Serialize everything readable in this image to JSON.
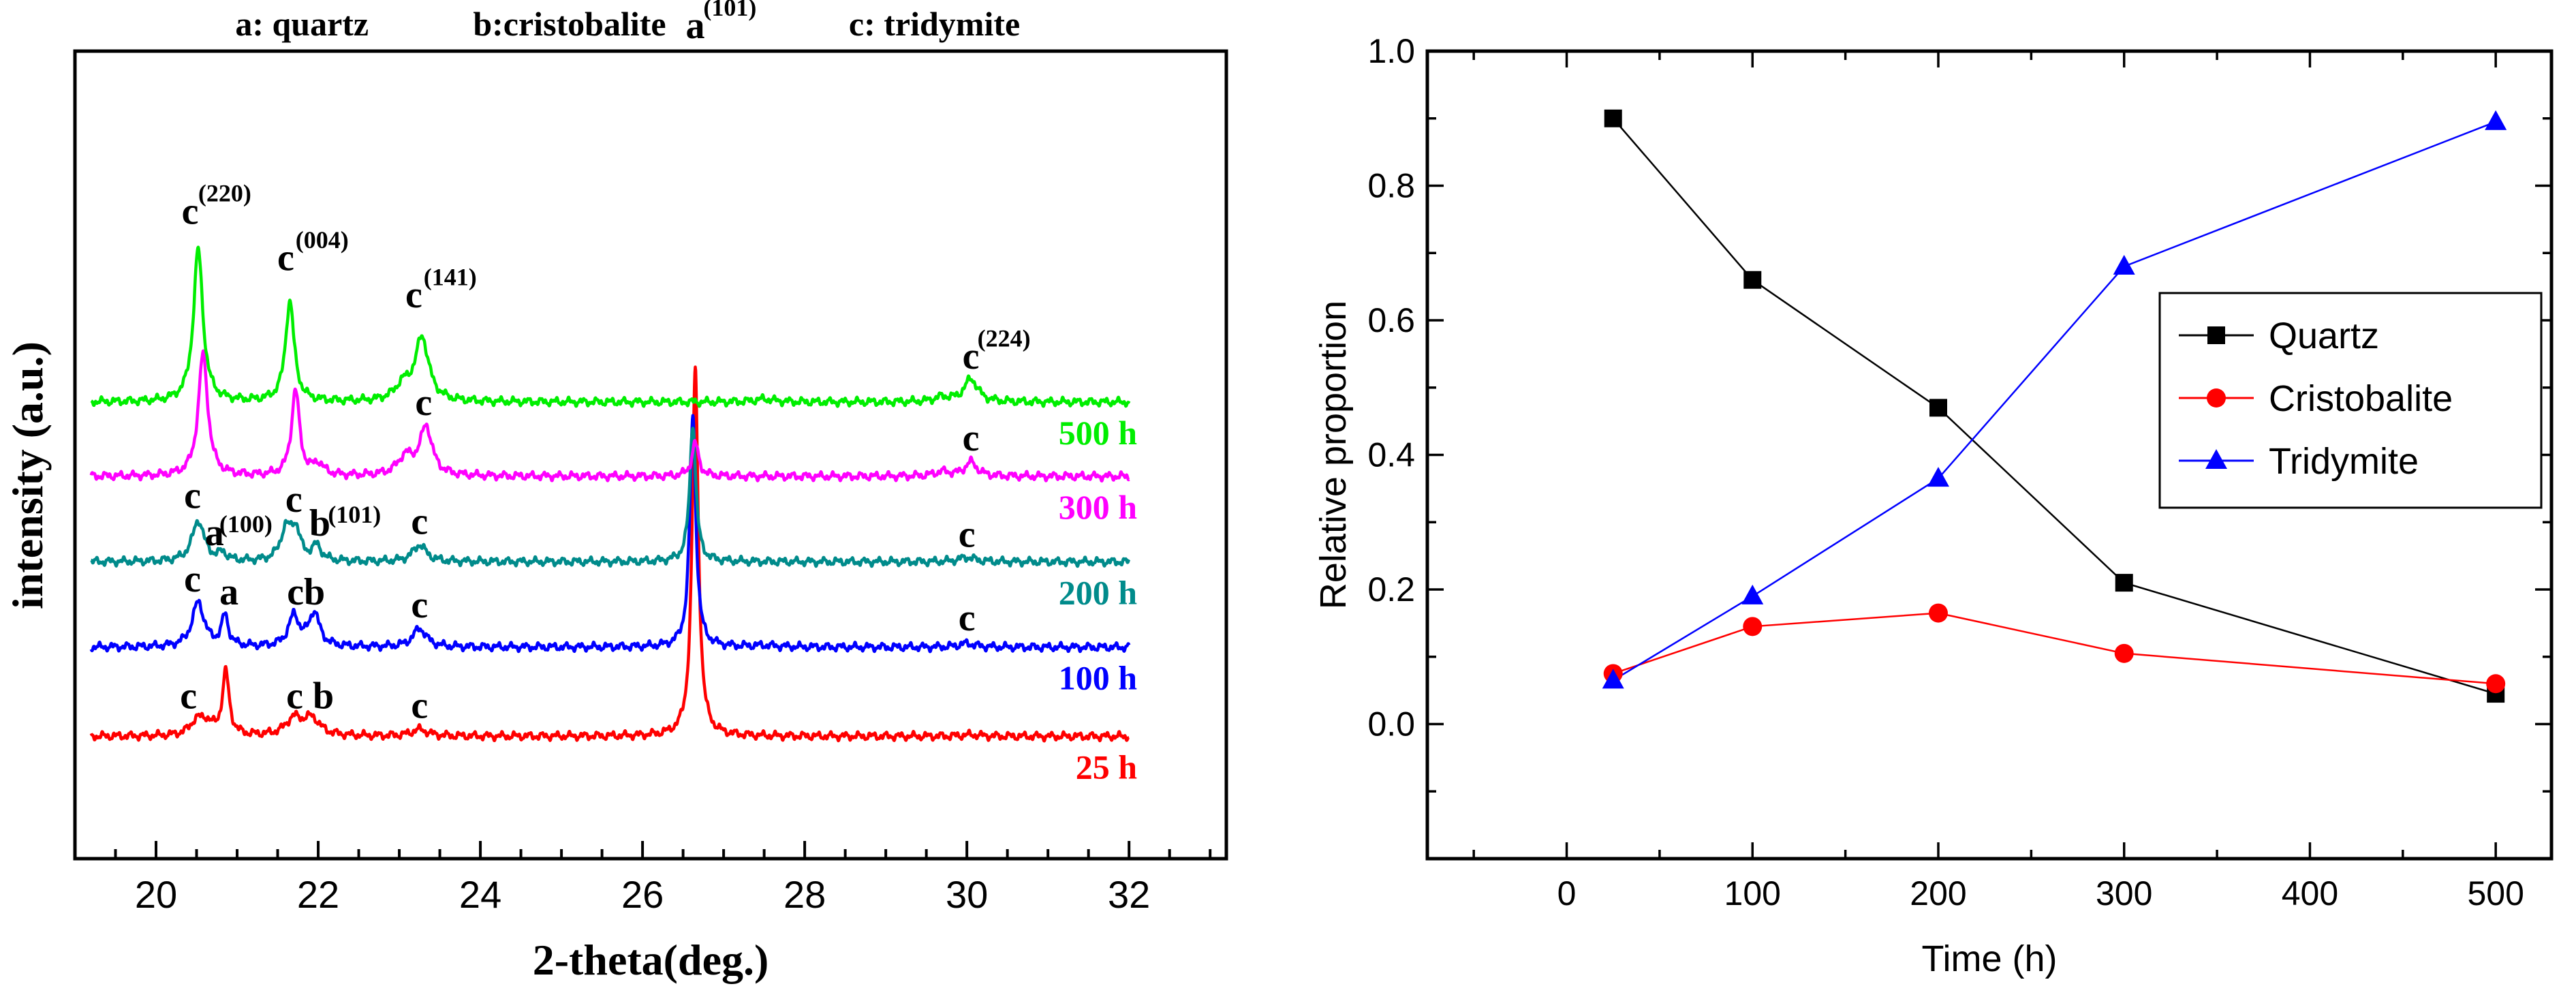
{
  "chart_data": [
    {
      "type": "line",
      "title": "",
      "xlabel": "2-theta(deg.)",
      "ylabel": "intensity (a.u.)",
      "xlim": [
        19,
        33.2
      ],
      "xticks": [
        20,
        22,
        24,
        26,
        28,
        30,
        32
      ],
      "grid": false,
      "phase_legend": [
        "a: quartz",
        "b:cristobalite",
        "c: tridymite"
      ],
      "series": [
        {
          "name": "25 h",
          "color": "#ff0000",
          "baseline": 0.1,
          "peaks": [
            {
              "x": 20.5,
              "h": 0.035,
              "w": 0.1
            },
            {
              "x": 20.62,
              "h": 0.03,
              "w": 0.1
            },
            {
              "x": 20.86,
              "h": 0.17,
              "w": 0.05
            },
            {
              "x": 21.7,
              "h": 0.045,
              "w": 0.12
            },
            {
              "x": 21.92,
              "h": 0.045,
              "w": 0.12
            },
            {
              "x": 23.25,
              "h": 0.018,
              "w": 0.12
            },
            {
              "x": 26.65,
              "h": 0.99,
              "w": 0.045
            },
            {
              "x": 30.05,
              "h": 0.004,
              "w": 0.15
            }
          ],
          "labels": [
            {
              "text": "c",
              "x": 20.4,
              "y": 0.175
            },
            {
              "text": "c b",
              "x": 21.9,
              "y": 0.175
            },
            {
              "text": "c",
              "x": 23.25,
              "y": 0.15
            }
          ]
        },
        {
          "name": "100 h",
          "color": "#0000ff",
          "baseline": 0.34,
          "peaks": [
            {
              "x": 20.52,
              "h": 0.12,
              "w": 0.09
            },
            {
              "x": 20.85,
              "h": 0.082,
              "w": 0.05
            },
            {
              "x": 21.7,
              "h": 0.082,
              "w": 0.08
            },
            {
              "x": 21.95,
              "h": 0.09,
              "w": 0.08
            },
            {
              "x": 23.25,
              "h": 0.05,
              "w": 0.1
            },
            {
              "x": 26.62,
              "h": 0.62,
              "w": 0.045
            },
            {
              "x": 27.5,
              "h": 0.004,
              "w": 0.2
            },
            {
              "x": 30.0,
              "h": 0.01,
              "w": 0.12
            }
          ],
          "labels": [
            {
              "text": "c",
              "x": 20.45,
              "y": 0.49
            },
            {
              "text": "a",
              "x": 20.9,
              "y": 0.455
            },
            {
              "text": "cb",
              "x": 21.85,
              "y": 0.455
            },
            {
              "text": "c",
              "x": 23.25,
              "y": 0.42
            },
            {
              "text": "c",
              "x": 30.0,
              "y": 0.385
            }
          ]
        },
        {
          "name": "200 h",
          "color": "#008b8b",
          "baseline": 0.57,
          "peaks": [
            {
              "x": 20.52,
              "h": 0.11,
              "w": 0.09
            },
            {
              "x": 20.82,
              "h": 0.02,
              "w": 0.06
            },
            {
              "x": 21.6,
              "h": 0.08,
              "w": 0.08
            },
            {
              "x": 21.72,
              "h": 0.08,
              "w": 0.07
            },
            {
              "x": 21.98,
              "h": 0.04,
              "w": 0.07
            },
            {
              "x": 23.25,
              "h": 0.045,
              "w": 0.1
            },
            {
              "x": 26.62,
              "h": 0.37,
              "w": 0.045
            },
            {
              "x": 30.0,
              "h": 0.012,
              "w": 0.12
            }
          ],
          "labels": [
            {
              "text": "c",
              "x": 20.45,
              "y": 0.715
            },
            {
              "text": "a",
              "x": 20.72,
              "y": 0.615
            },
            {
              "text": "c",
              "x": 21.7,
              "y": 0.705
            },
            {
              "text": "b",
              "x": 22.02,
              "y": 0.64
            },
            {
              "text": "c",
              "x": 23.25,
              "y": 0.645
            },
            {
              "text": "c",
              "x": 30.0,
              "y": 0.61
            }
          ],
          "superscripts": [
            {
              "text": "(100)",
              "x": 20.78,
              "y": 0.65
            },
            {
              "text": "(101)",
              "x": 22.12,
              "y": 0.675
            }
          ]
        },
        {
          "name": "300 h",
          "color": "#ff00ff",
          "baseline": 0.8,
          "peaks": [
            {
              "x": 20.58,
              "h": 0.33,
              "w": 0.07
            },
            {
              "x": 21.72,
              "h": 0.23,
              "w": 0.06
            },
            {
              "x": 22.0,
              "h": 0.03,
              "w": 0.08
            },
            {
              "x": 23.08,
              "h": 0.05,
              "w": 0.12
            },
            {
              "x": 23.33,
              "h": 0.13,
              "w": 0.09
            },
            {
              "x": 26.65,
              "h": 0.09,
              "w": 0.05
            },
            {
              "x": 29.7,
              "h": 0.012,
              "w": 0.12
            },
            {
              "x": 30.05,
              "h": 0.038,
              "w": 0.09
            }
          ],
          "labels": [
            {
              "text": "c",
              "x": 23.3,
              "y": 0.965
            },
            {
              "text": "c",
              "x": 30.05,
              "y": 0.87
            }
          ]
        },
        {
          "name": "500 h",
          "color": "#00ee00",
          "baseline": 1.0,
          "peaks": [
            {
              "x": 20.52,
              "h": 0.41,
              "w": 0.07
            },
            {
              "x": 21.65,
              "h": 0.27,
              "w": 0.065
            },
            {
              "x": 23.05,
              "h": 0.04,
              "w": 0.12
            },
            {
              "x": 23.28,
              "h": 0.17,
              "w": 0.1
            },
            {
              "x": 27.5,
              "h": 0.008,
              "w": 0.15
            },
            {
              "x": 29.7,
              "h": 0.012,
              "w": 0.12
            },
            {
              "x": 30.05,
              "h": 0.062,
              "w": 0.1
            }
          ],
          "labels": [
            {
              "text": "c",
              "x": 20.42,
              "y": 1.48
            },
            {
              "text": "c",
              "x": 21.6,
              "y": 1.355
            },
            {
              "text": "c",
              "x": 23.18,
              "y": 1.255
            },
            {
              "text": "c",
              "x": 30.05,
              "y": 1.09
            },
            {
              "text": "a",
              "x": 26.65,
              "y": 1.98
            }
          ],
          "superscripts": [
            {
              "text": "(220)",
              "x": 20.52,
              "y": 1.54
            },
            {
              "text": "(004)",
              "x": 21.72,
              "y": 1.415
            },
            {
              "text": "(141)",
              "x": 23.3,
              "y": 1.315
            },
            {
              "text": "(224)",
              "x": 30.13,
              "y": 1.15
            },
            {
              "text": "(101)",
              "x": 26.75,
              "y": 2.04
            }
          ]
        }
      ]
    },
    {
      "type": "line",
      "title": "",
      "xlabel": "Time (h)",
      "ylabel": "Relative proportion",
      "xlim": [
        -75,
        530
      ],
      "ylim": [
        -0.2,
        1.0
      ],
      "xticks": [
        0,
        100,
        200,
        300,
        400,
        500
      ],
      "yticks": [
        0.0,
        0.2,
        0.4,
        0.6,
        0.8,
        1.0
      ],
      "ytick_labels": [
        "0.0",
        "0.2",
        "0.4",
        "0.6",
        "0.8",
        "1.0"
      ],
      "grid": false,
      "legend_position": "right",
      "x": [
        25,
        100,
        200,
        300,
        500
      ],
      "series": [
        {
          "name": "Quartz",
          "color": "#000000",
          "marker": "square",
          "values": [
            0.9,
            0.66,
            0.47,
            0.21,
            0.045
          ]
        },
        {
          "name": "Cristobalite",
          "color": "#ff0000",
          "marker": "circle",
          "values": [
            0.075,
            0.145,
            0.165,
            0.105,
            0.06
          ]
        },
        {
          "name": "Tridymite",
          "color": "#0000ff",
          "marker": "triangle",
          "values": [
            0.065,
            0.19,
            0.365,
            0.68,
            0.895
          ]
        }
      ]
    }
  ]
}
